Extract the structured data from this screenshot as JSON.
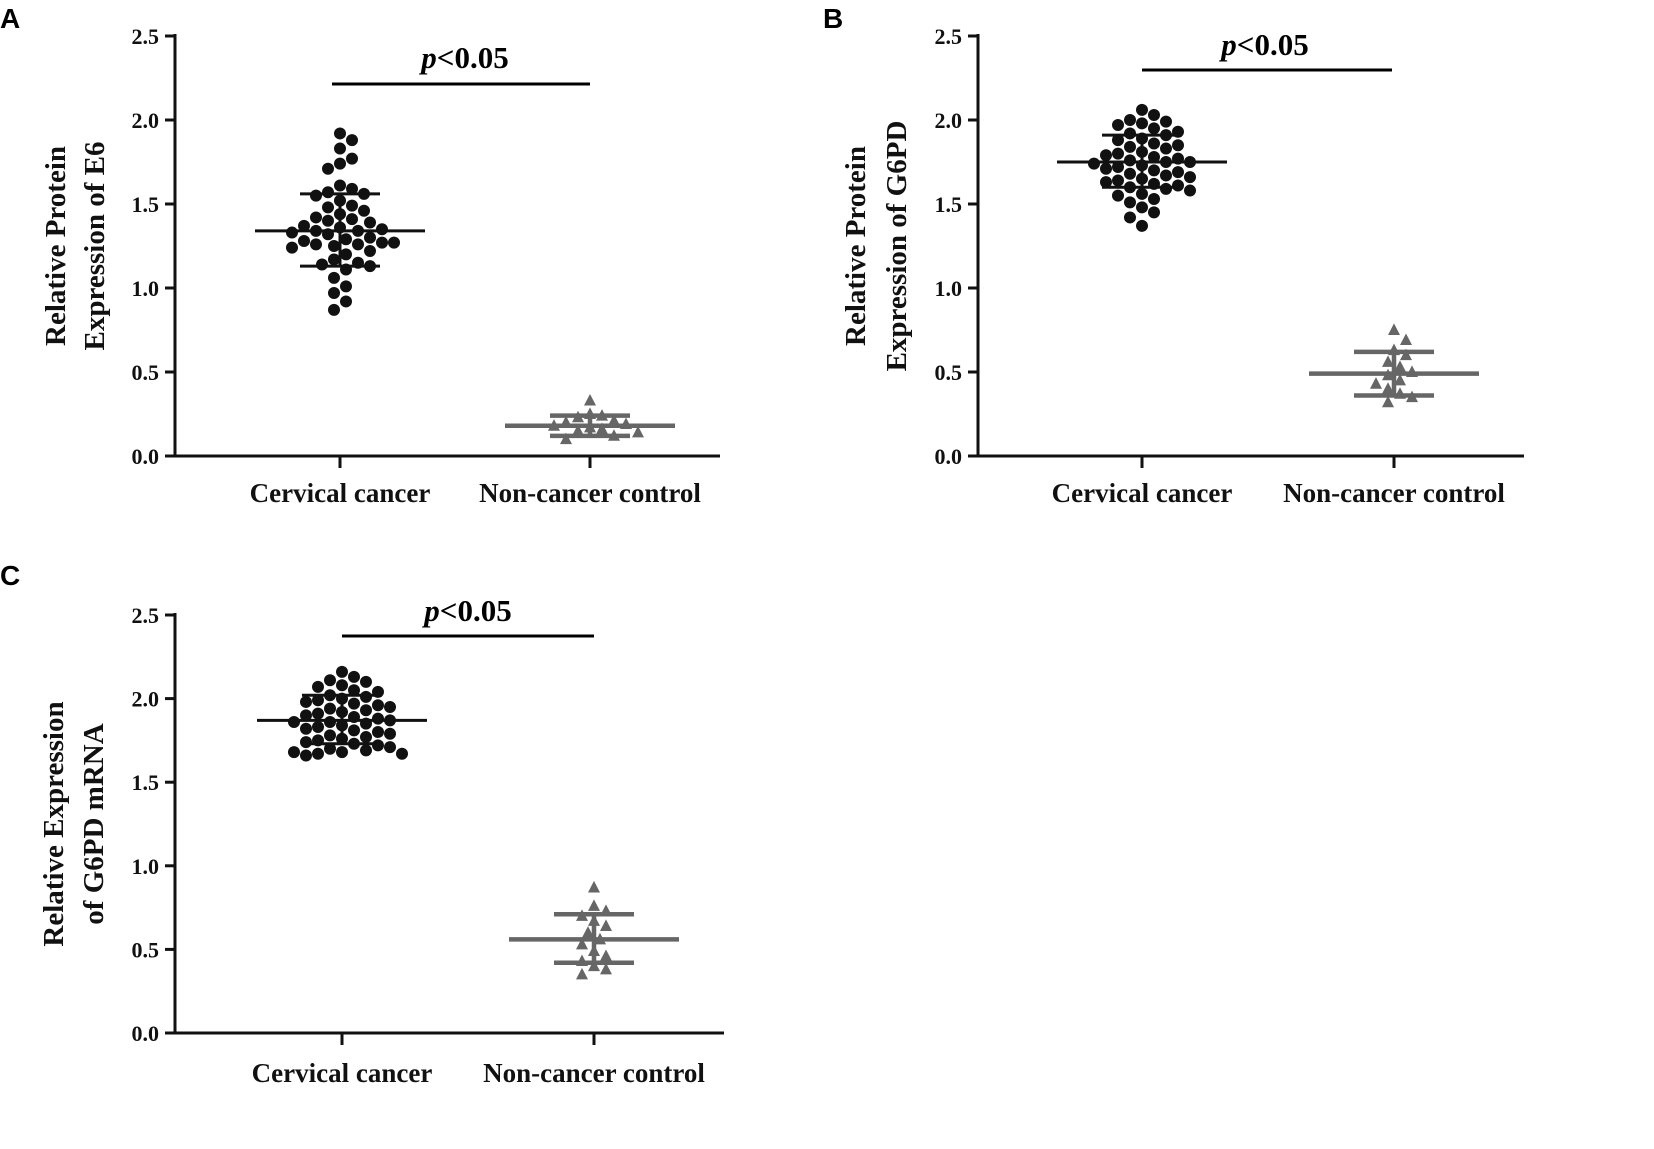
{
  "chart_data": [
    {
      "panel": "A",
      "type": "scatter",
      "ylabel_lines": [
        "Relative Protein",
        "Expression of E6"
      ],
      "ylim": [
        0,
        2.5
      ],
      "yticks": [
        "0.0",
        "0.5",
        "1.0",
        "1.5",
        "2.0",
        "2.5"
      ],
      "categories": [
        "Cervical cancer",
        "Non-cancer control"
      ],
      "significance": {
        "p": "p",
        "rest": "<0.05"
      },
      "series": [
        {
          "name": "Cervical cancer",
          "marker": "circle",
          "color": "#111111",
          "mean": 1.34,
          "sd_low": 1.13,
          "sd_high": 1.56,
          "values": [
            1.92,
            1.88,
            1.83,
            1.77,
            1.74,
            1.71,
            1.61,
            1.59,
            1.57,
            1.56,
            1.55,
            1.52,
            1.49,
            1.48,
            1.46,
            1.44,
            1.42,
            1.41,
            1.4,
            1.39,
            1.37,
            1.36,
            1.35,
            1.34,
            1.34,
            1.33,
            1.32,
            1.3,
            1.29,
            1.28,
            1.27,
            1.27,
            1.26,
            1.26,
            1.25,
            1.24,
            1.22,
            1.2,
            1.17,
            1.15,
            1.14,
            1.13,
            1.11,
            1.06,
            1.01,
            0.97,
            0.92,
            0.87
          ]
        },
        {
          "name": "Non-cancer control",
          "marker": "triangle",
          "color": "#666666",
          "mean": 0.18,
          "sd_low": 0.12,
          "sd_high": 0.24,
          "values": [
            0.33,
            0.25,
            0.24,
            0.23,
            0.21,
            0.2,
            0.19,
            0.18,
            0.17,
            0.16,
            0.15,
            0.14,
            0.12,
            0.1
          ]
        }
      ]
    },
    {
      "panel": "B",
      "type": "scatter",
      "ylabel_lines": [
        "Relative Protein",
        "Expression of G6PD"
      ],
      "ylim": [
        0,
        2.5
      ],
      "yticks": [
        "0.0",
        "0.5",
        "1.0",
        "1.5",
        "2.0",
        "2.5"
      ],
      "categories": [
        "Cervical cancer",
        "Non-cancer control"
      ],
      "significance": {
        "p": "p",
        "rest": "<0.05"
      },
      "series": [
        {
          "name": "Cervical cancer",
          "marker": "circle",
          "color": "#111111",
          "mean": 1.75,
          "sd_low": 1.6,
          "sd_high": 1.91,
          "values": [
            2.06,
            2.03,
            2.0,
            1.99,
            1.98,
            1.97,
            1.95,
            1.93,
            1.92,
            1.91,
            1.89,
            1.88,
            1.86,
            1.85,
            1.84,
            1.83,
            1.81,
            1.8,
            1.79,
            1.78,
            1.77,
            1.76,
            1.75,
            1.75,
            1.74,
            1.73,
            1.72,
            1.71,
            1.7,
            1.69,
            1.68,
            1.67,
            1.66,
            1.65,
            1.64,
            1.63,
            1.62,
            1.61,
            1.6,
            1.59,
            1.58,
            1.56,
            1.55,
            1.53,
            1.51,
            1.48,
            1.45,
            1.42,
            1.37
          ]
        },
        {
          "name": "Non-cancer control",
          "marker": "triangle",
          "color": "#666666",
          "mean": 0.49,
          "sd_low": 0.36,
          "sd_high": 0.62,
          "values": [
            0.75,
            0.69,
            0.63,
            0.6,
            0.56,
            0.53,
            0.5,
            0.48,
            0.45,
            0.43,
            0.4,
            0.37,
            0.35,
            0.32
          ]
        }
      ]
    },
    {
      "panel": "C",
      "type": "scatter",
      "ylabel_lines": [
        "Relative Expression",
        "of G6PD mRNA"
      ],
      "ylim": [
        0,
        2.5
      ],
      "yticks": [
        "0.0",
        "0.5",
        "1.0",
        "1.5",
        "2.0",
        "2.5"
      ],
      "categories": [
        "Cervical cancer",
        "Non-cancer control"
      ],
      "significance": {
        "p": "p",
        "rest": "<0.05"
      },
      "series": [
        {
          "name": "Cervical cancer",
          "marker": "circle",
          "color": "#111111",
          "mean": 1.87,
          "sd_low": 1.73,
          "sd_high": 2.02,
          "values": [
            2.16,
            2.13,
            2.11,
            2.1,
            2.08,
            2.07,
            2.05,
            2.04,
            2.02,
            2.01,
            2.0,
            1.99,
            1.98,
            1.97,
            1.96,
            1.95,
            1.94,
            1.93,
            1.92,
            1.91,
            1.9,
            1.89,
            1.88,
            1.87,
            1.86,
            1.86,
            1.85,
            1.84,
            1.83,
            1.82,
            1.81,
            1.8,
            1.79,
            1.78,
            1.77,
            1.76,
            1.75,
            1.74,
            1.73,
            1.72,
            1.71,
            1.7,
            1.69,
            1.68,
            1.68,
            1.67,
            1.67,
            1.66
          ]
        },
        {
          "name": "Non-cancer control",
          "marker": "triangle",
          "color": "#666666",
          "mean": 0.56,
          "sd_low": 0.42,
          "sd_high": 0.71,
          "values": [
            0.87,
            0.76,
            0.73,
            0.7,
            0.67,
            0.64,
            0.6,
            0.56,
            0.53,
            0.49,
            0.46,
            0.43,
            0.4,
            0.38,
            0.35
          ]
        }
      ]
    }
  ]
}
